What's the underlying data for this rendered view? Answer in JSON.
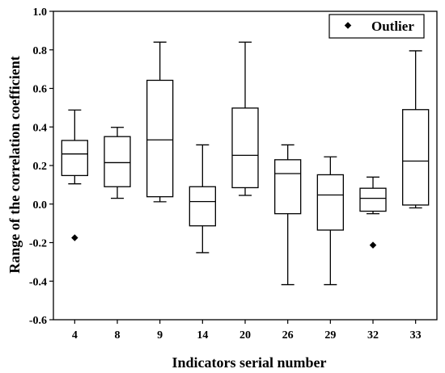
{
  "chart_data": {
    "type": "box",
    "xlabel": "Indicators serial number",
    "ylabel": "Range of the correlation coefficient",
    "ylim": [
      -0.6,
      1.0
    ],
    "yticks": [
      "-0.6",
      "-0.4",
      "-0.2",
      "0.0",
      "0.2",
      "0.4",
      "0.6",
      "0.8",
      "1.0"
    ],
    "yticks_values": [
      -0.6,
      -0.4,
      -0.2,
      0.0,
      0.2,
      0.4,
      0.6,
      0.8,
      1.0
    ],
    "categories": [
      "4",
      "8",
      "9",
      "14",
      "20",
      "26",
      "29",
      "32",
      "33"
    ],
    "boxes": [
      {
        "category": "4",
        "whisker_low": 0.105,
        "q1": 0.148,
        "median": 0.26,
        "q3": 0.33,
        "whisker_high": 0.488,
        "outliers": [
          -0.175
        ]
      },
      {
        "category": "8",
        "whisker_low": 0.03,
        "q1": 0.09,
        "median": 0.215,
        "q3": 0.35,
        "whisker_high": 0.398,
        "outliers": []
      },
      {
        "category": "9",
        "whisker_low": 0.012,
        "q1": 0.038,
        "median": 0.333,
        "q3": 0.642,
        "whisker_high": 0.84,
        "outliers": []
      },
      {
        "category": "14",
        "whisker_low": -0.252,
        "q1": -0.113,
        "median": 0.013,
        "q3": 0.09,
        "whisker_high": 0.307,
        "outliers": []
      },
      {
        "category": "20",
        "whisker_low": 0.045,
        "q1": 0.085,
        "median": 0.253,
        "q3": 0.498,
        "whisker_high": 0.84,
        "outliers": []
      },
      {
        "category": "26",
        "whisker_low": -0.418,
        "q1": -0.05,
        "median": 0.158,
        "q3": 0.23,
        "whisker_high": 0.307,
        "outliers": []
      },
      {
        "category": "29",
        "whisker_low": -0.418,
        "q1": -0.135,
        "median": 0.047,
        "q3": 0.152,
        "whisker_high": 0.245,
        "outliers": []
      },
      {
        "category": "32",
        "whisker_low": -0.05,
        "q1": -0.037,
        "median": 0.03,
        "q3": 0.082,
        "whisker_high": 0.14,
        "outliers": [
          -0.213
        ]
      },
      {
        "category": "33",
        "whisker_low": -0.02,
        "q1": -0.005,
        "median": 0.223,
        "q3": 0.49,
        "whisker_high": 0.795,
        "outliers": []
      }
    ],
    "legend": {
      "label": "Outlier",
      "position": "top-right"
    },
    "grid": false
  }
}
